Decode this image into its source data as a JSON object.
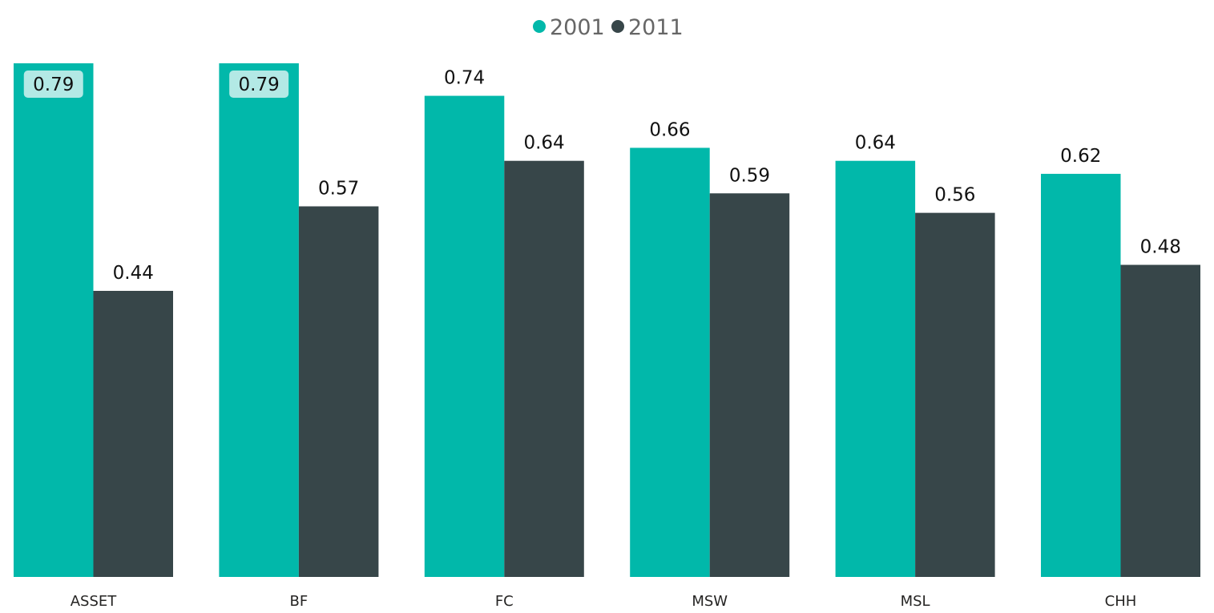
{
  "chart_data": {
    "type": "bar",
    "title": "",
    "xlabel": "",
    "ylabel": "",
    "ylim": [
      0,
      0.79
    ],
    "grid": false,
    "legend_position": "top-center",
    "categories": [
      "ASSET",
      "BF",
      "FC",
      "MSW",
      "MSL",
      "CHH"
    ],
    "series": [
      {
        "name": "2001",
        "color": "#01B8AA",
        "values": [
          0.79,
          0.79,
          0.74,
          0.66,
          0.64,
          0.62
        ],
        "labels": [
          "0.79",
          "0.79",
          "0.74",
          "0.66",
          "0.64",
          "0.62"
        ]
      },
      {
        "name": "2011",
        "color": "#374649",
        "values": [
          0.44,
          0.57,
          0.64,
          0.59,
          0.56,
          0.48
        ],
        "labels": [
          "0.44",
          "0.57",
          "0.64",
          "0.59",
          "0.56",
          "0.48"
        ]
      }
    ]
  }
}
